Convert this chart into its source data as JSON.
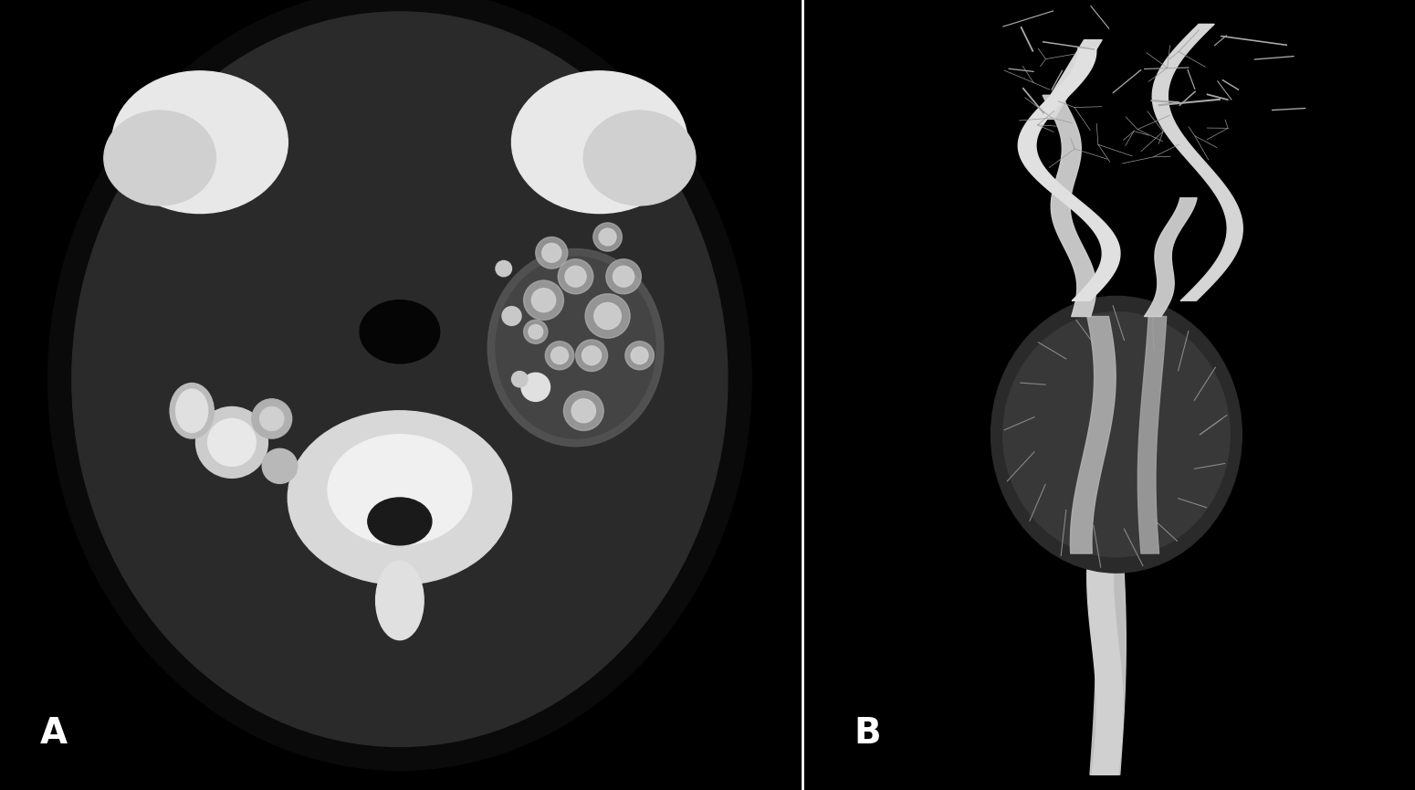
{
  "background_color": "#000000",
  "panel_A_label": "A",
  "panel_B_label": "B",
  "label_color": "#ffffff",
  "label_fontsize": 28,
  "label_fontweight": "bold",
  "divider_color": "#ffffff",
  "divider_linewidth": 2,
  "figsize": [
    15.5,
    8.65
  ],
  "dpi": 100,
  "panel_A_bg": "#1a1a1a",
  "panel_B_bg": "#000000",
  "outer_bg": "#1e1e1e"
}
